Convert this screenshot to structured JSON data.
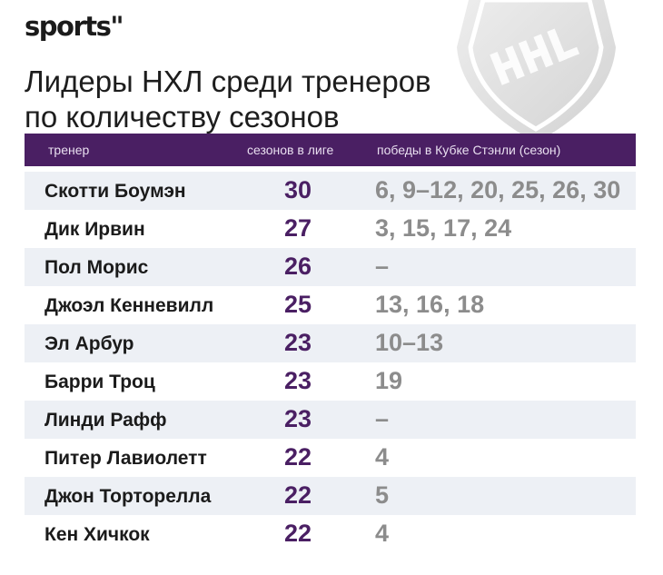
{
  "brand": {
    "logo": "sports\""
  },
  "title_lines": [
    "Лидеры НХЛ среди тренеров",
    "по количеству сезонов"
  ],
  "colors": {
    "accent": "#4a1f63",
    "header_text": "#e9dff0",
    "muted": "#8c8c8c",
    "row_alt": "#edf0f5"
  },
  "watermark_icon": "nhl-shield-icon",
  "chart_data": {
    "type": "table",
    "title": "Лидеры НХЛ среди тренеров по количеству сезонов",
    "columns": [
      "тренер",
      "сезонов в лиге",
      "победы в Кубке Стэнли (сезон)"
    ],
    "rows": [
      [
        "Скотти Боумэн",
        "30",
        "6, 9–12, 20, 25, 26, 30"
      ],
      [
        "Дик Ирвин",
        "27",
        "3, 15, 17, 24"
      ],
      [
        "Пол Морис",
        "26",
        "–"
      ],
      [
        "Джоэл Кенневилл",
        "25",
        "13, 16, 18"
      ],
      [
        "Эл Арбур",
        "23",
        "10–13"
      ],
      [
        "Барри Троц",
        "23",
        "19"
      ],
      [
        "Линди Рафф",
        "23",
        "–"
      ],
      [
        "Питер Лавиолетт",
        "22",
        "4"
      ],
      [
        "Джон Торторелла",
        "22",
        "5"
      ],
      [
        "Кен Хичкок",
        "22",
        "4"
      ]
    ]
  }
}
